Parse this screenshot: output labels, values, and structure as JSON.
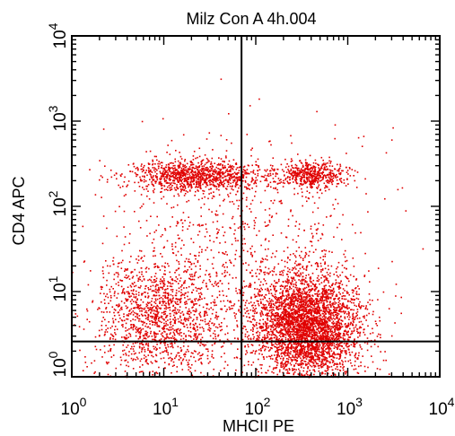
{
  "chart_data": {
    "type": "scatter",
    "title": "Milz Con A 4h.004",
    "xlabel": "MHCII PE",
    "ylabel": "CD4 APC",
    "xscale": "log",
    "yscale": "log",
    "xlim": [
      1,
      10000
    ],
    "ylim": [
      1,
      10000
    ],
    "x_ticks": [
      {
        "base": "10",
        "exp": "0"
      },
      {
        "base": "10",
        "exp": "1"
      },
      {
        "base": "10",
        "exp": "2"
      },
      {
        "base": "10",
        "exp": "3"
      },
      {
        "base": "10",
        "exp": "4"
      }
    ],
    "y_ticks": [
      {
        "base": "10",
        "exp": "0"
      },
      {
        "base": "10",
        "exp": "1"
      },
      {
        "base": "10",
        "exp": "2"
      },
      {
        "base": "10",
        "exp": "3"
      },
      {
        "base": "10",
        "exp": "4"
      }
    ],
    "quadrant_gates": {
      "x": 70,
      "y": 2.6
    },
    "point_color": "#e00000",
    "populations": [
      {
        "x_center": 350,
        "y_center": 4,
        "x_spread_decades": 0.28,
        "y_spread_decades": 0.33,
        "count": 3800
      },
      {
        "x_center": 9,
        "y_center": 5,
        "x_spread_decades": 0.38,
        "y_spread_decades": 0.35,
        "count": 1500
      },
      {
        "x_center": 22,
        "y_center": 230,
        "x_spread_decades": 0.36,
        "y_spread_decades": 0.09,
        "count": 1100
      },
      {
        "x_center": 400,
        "y_center": 240,
        "x_spread_decades": 0.2,
        "y_spread_decades": 0.08,
        "count": 500
      },
      {
        "x_center": 60,
        "y_center": 40,
        "x_spread_decades": 0.8,
        "y_spread_decades": 0.6,
        "count": 700
      }
    ],
    "grid": false,
    "legend": "none"
  }
}
